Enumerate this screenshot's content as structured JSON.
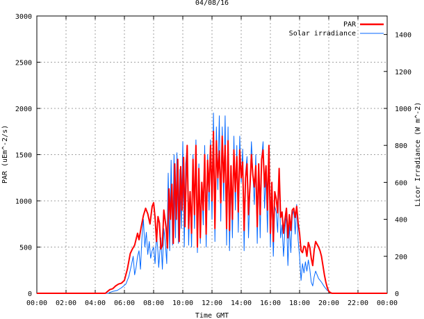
{
  "chart_data": {
    "type": "line",
    "title": "04/08/16",
    "xlabel": "Time GMT",
    "ylabel": "PAR (uEm^-2/s)",
    "y2label": "Licor Irradiance (W m^-2)",
    "x_ticks": [
      "00:00",
      "02:00",
      "04:00",
      "06:00",
      "08:00",
      "10:00",
      "12:00",
      "14:00",
      "16:00",
      "18:00",
      "20:00",
      "22:00",
      "00:00"
    ],
    "y_ticks": [
      "0",
      "500",
      "1000",
      "1500",
      "2000",
      "2500",
      "3000"
    ],
    "y2_ticks": [
      "0",
      "200",
      "400",
      "600",
      "800",
      "1000",
      "1200",
      "1400"
    ],
    "xlim": [
      0,
      24
    ],
    "ylim": [
      0,
      3000
    ],
    "y2lim": [
      0,
      1500
    ],
    "grid": true,
    "legend_position": "top-right",
    "series": [
      {
        "name": "PAR",
        "axis": "left",
        "color": "#ff0000",
        "points": [
          [
            0,
            0
          ],
          [
            4.7,
            0
          ],
          [
            4.85,
            20
          ],
          [
            5.0,
            40
          ],
          [
            5.2,
            50
          ],
          [
            5.4,
            80
          ],
          [
            5.6,
            100
          ],
          [
            5.8,
            110
          ],
          [
            6.0,
            140
          ],
          [
            6.2,
            260
          ],
          [
            6.4,
            430
          ],
          [
            6.55,
            480
          ],
          [
            6.7,
            520
          ],
          [
            6.9,
            650
          ],
          [
            7.0,
            580
          ],
          [
            7.15,
            720
          ],
          [
            7.3,
            840
          ],
          [
            7.45,
            920
          ],
          [
            7.6,
            860
          ],
          [
            7.75,
            750
          ],
          [
            7.9,
            940
          ],
          [
            8.0,
            980
          ],
          [
            8.1,
            820
          ],
          [
            8.2,
            560
          ],
          [
            8.3,
            830
          ],
          [
            8.4,
            760
          ],
          [
            8.5,
            480
          ],
          [
            8.6,
            520
          ],
          [
            8.7,
            900
          ],
          [
            8.85,
            720
          ],
          [
            8.95,
            490
          ],
          [
            9.05,
            1130
          ],
          [
            9.15,
            800
          ],
          [
            9.25,
            1180
          ],
          [
            9.35,
            540
          ],
          [
            9.45,
            1400
          ],
          [
            9.55,
            800
          ],
          [
            9.65,
            1450
          ],
          [
            9.75,
            560
          ],
          [
            9.85,
            1370
          ],
          [
            9.95,
            900
          ],
          [
            10.05,
            1470
          ],
          [
            10.15,
            720
          ],
          [
            10.25,
            1400
          ],
          [
            10.3,
            1600
          ],
          [
            10.4,
            700
          ],
          [
            10.5,
            1100
          ],
          [
            10.6,
            650
          ],
          [
            10.7,
            1450
          ],
          [
            10.8,
            850
          ],
          [
            10.9,
            1600
          ],
          [
            11.0,
            500
          ],
          [
            11.1,
            1350
          ],
          [
            11.2,
            600
          ],
          [
            11.3,
            1200
          ],
          [
            11.4,
            900
          ],
          [
            11.5,
            1500
          ],
          [
            11.6,
            640
          ],
          [
            11.7,
            1440
          ],
          [
            11.8,
            1100
          ],
          [
            11.9,
            1600
          ],
          [
            12.0,
            1000
          ],
          [
            12.1,
            1750
          ],
          [
            12.2,
            700
          ],
          [
            12.3,
            1650
          ],
          [
            12.4,
            1250
          ],
          [
            12.5,
            1540
          ],
          [
            12.6,
            980
          ],
          [
            12.7,
            1700
          ],
          [
            12.8,
            1200
          ],
          [
            12.9,
            1600
          ],
          [
            13.0,
            700
          ],
          [
            13.1,
            1650
          ],
          [
            13.2,
            680
          ],
          [
            13.3,
            1380
          ],
          [
            13.4,
            800
          ],
          [
            13.5,
            1550
          ],
          [
            13.6,
            1100
          ],
          [
            13.7,
            1480
          ],
          [
            13.8,
            880
          ],
          [
            13.9,
            1550
          ],
          [
            14.0,
            1250
          ],
          [
            14.1,
            1420
          ],
          [
            14.2,
            680
          ],
          [
            14.3,
            1250
          ],
          [
            14.4,
            1400
          ],
          [
            14.5,
            850
          ],
          [
            14.6,
            1150
          ],
          [
            14.7,
            1500
          ],
          [
            14.8,
            1280
          ],
          [
            14.9,
            1150
          ],
          [
            15.0,
            1380
          ],
          [
            15.1,
            720
          ],
          [
            15.2,
            1400
          ],
          [
            15.3,
            850
          ],
          [
            15.4,
            1450
          ],
          [
            15.5,
            1550
          ],
          [
            15.6,
            1150
          ],
          [
            15.7,
            1380
          ],
          [
            15.8,
            900
          ],
          [
            15.9,
            1600
          ],
          [
            16.0,
            650
          ],
          [
            16.1,
            1200
          ],
          [
            16.2,
            560
          ],
          [
            16.3,
            1100
          ],
          [
            16.4,
            1020
          ],
          [
            16.5,
            870
          ],
          [
            16.6,
            1350
          ],
          [
            16.7,
            820
          ],
          [
            16.8,
            880
          ],
          [
            16.9,
            650
          ],
          [
            17.0,
            800
          ],
          [
            17.1,
            920
          ],
          [
            17.2,
            600
          ],
          [
            17.3,
            850
          ],
          [
            17.4,
            680
          ],
          [
            17.5,
            900
          ],
          [
            17.6,
            920
          ],
          [
            17.7,
            820
          ],
          [
            17.8,
            940
          ],
          [
            17.9,
            760
          ],
          [
            18.0,
            650
          ],
          [
            18.1,
            460
          ],
          [
            18.2,
            440
          ],
          [
            18.3,
            510
          ],
          [
            18.4,
            500
          ],
          [
            18.5,
            400
          ],
          [
            18.6,
            550
          ],
          [
            18.7,
            500
          ],
          [
            18.8,
            380
          ],
          [
            18.9,
            300
          ],
          [
            19.0,
            470
          ],
          [
            19.1,
            560
          ],
          [
            19.2,
            530
          ],
          [
            19.3,
            500
          ],
          [
            19.4,
            460
          ],
          [
            19.5,
            400
          ],
          [
            19.6,
            300
          ],
          [
            19.7,
            200
          ],
          [
            19.8,
            120
          ],
          [
            19.9,
            60
          ],
          [
            20.0,
            20
          ],
          [
            20.1,
            10
          ],
          [
            20.2,
            0
          ],
          [
            24,
            0
          ]
        ]
      },
      {
        "name": "Solar irradiance",
        "axis": "right",
        "color": "#0066ff",
        "points": [
          [
            0,
            0
          ],
          [
            4.9,
            0
          ],
          [
            5.0,
            5
          ],
          [
            5.2,
            10
          ],
          [
            5.5,
            15
          ],
          [
            5.8,
            30
          ],
          [
            6.1,
            50
          ],
          [
            6.3,
            90
          ],
          [
            6.5,
            160
          ],
          [
            6.6,
            200
          ],
          [
            6.7,
            100
          ],
          [
            6.8,
            140
          ],
          [
            6.9,
            200
          ],
          [
            7.0,
            230
          ],
          [
            7.1,
            130
          ],
          [
            7.2,
            300
          ],
          [
            7.3,
            400
          ],
          [
            7.4,
            250
          ],
          [
            7.5,
            330
          ],
          [
            7.6,
            210
          ],
          [
            7.7,
            280
          ],
          [
            7.8,
            190
          ],
          [
            7.9,
            230
          ],
          [
            8.0,
            250
          ],
          [
            8.1,
            160
          ],
          [
            8.2,
            320
          ],
          [
            8.3,
            220
          ],
          [
            8.35,
            140
          ],
          [
            8.5,
            300
          ],
          [
            8.6,
            130
          ],
          [
            8.7,
            350
          ],
          [
            8.8,
            280
          ],
          [
            8.9,
            160
          ],
          [
            9.0,
            650
          ],
          [
            9.1,
            230
          ],
          [
            9.2,
            720
          ],
          [
            9.3,
            260
          ],
          [
            9.4,
            750
          ],
          [
            9.5,
            300
          ],
          [
            9.6,
            760
          ],
          [
            9.7,
            270
          ],
          [
            9.8,
            670
          ],
          [
            9.9,
            350
          ],
          [
            10.0,
            820
          ],
          [
            10.1,
            250
          ],
          [
            10.2,
            700
          ],
          [
            10.3,
            800
          ],
          [
            10.4,
            260
          ],
          [
            10.5,
            550
          ],
          [
            10.6,
            250
          ],
          [
            10.7,
            750
          ],
          [
            10.8,
            350
          ],
          [
            10.9,
            830
          ],
          [
            11.0,
            220
          ],
          [
            11.1,
            700
          ],
          [
            11.2,
            270
          ],
          [
            11.3,
            600
          ],
          [
            11.4,
            370
          ],
          [
            11.5,
            800
          ],
          [
            11.6,
            250
          ],
          [
            11.7,
            750
          ],
          [
            11.8,
            450
          ],
          [
            11.9,
            830
          ],
          [
            12.0,
            400
          ],
          [
            12.1,
            975
          ],
          [
            12.2,
            280
          ],
          [
            12.3,
            900
          ],
          [
            12.4,
            560
          ],
          [
            12.5,
            960
          ],
          [
            12.6,
            390
          ],
          [
            12.7,
            900
          ],
          [
            12.8,
            500
          ],
          [
            12.9,
            960
          ],
          [
            13.0,
            260
          ],
          [
            13.1,
            900
          ],
          [
            13.2,
            230
          ],
          [
            13.3,
            620
          ],
          [
            13.4,
            300
          ],
          [
            13.5,
            850
          ],
          [
            13.6,
            450
          ],
          [
            13.7,
            800
          ],
          [
            13.8,
            330
          ],
          [
            13.9,
            850
          ],
          [
            14.0,
            600
          ],
          [
            14.1,
            780
          ],
          [
            14.2,
            230
          ],
          [
            14.3,
            650
          ],
          [
            14.4,
            740
          ],
          [
            14.5,
            300
          ],
          [
            14.6,
            550
          ],
          [
            14.7,
            820
          ],
          [
            14.8,
            650
          ],
          [
            14.9,
            480
          ],
          [
            15.0,
            750
          ],
          [
            15.1,
            270
          ],
          [
            15.2,
            700
          ],
          [
            15.3,
            300
          ],
          [
            15.4,
            730
          ],
          [
            15.5,
            820
          ],
          [
            15.6,
            460
          ],
          [
            15.7,
            640
          ],
          [
            15.8,
            330
          ],
          [
            15.9,
            800
          ],
          [
            16.0,
            250
          ],
          [
            16.1,
            550
          ],
          [
            16.2,
            200
          ],
          [
            16.3,
            470
          ],
          [
            16.4,
            440
          ],
          [
            16.5,
            330
          ],
          [
            16.6,
            650
          ],
          [
            16.7,
            300
          ],
          [
            16.8,
            370
          ],
          [
            16.9,
            200
          ],
          [
            17.0,
            350
          ],
          [
            17.1,
            420
          ],
          [
            17.2,
            150
          ],
          [
            17.3,
            370
          ],
          [
            17.4,
            220
          ],
          [
            17.5,
            420
          ],
          [
            17.6,
            450
          ],
          [
            17.7,
            320
          ],
          [
            17.8,
            480
          ],
          [
            17.9,
            290
          ],
          [
            18.0,
            200
          ],
          [
            18.1,
            70
          ],
          [
            18.2,
            160
          ],
          [
            18.3,
            110
          ],
          [
            18.4,
            170
          ],
          [
            18.5,
            120
          ],
          [
            18.6,
            180
          ],
          [
            18.7,
            130
          ],
          [
            18.8,
            60
          ],
          [
            18.9,
            40
          ],
          [
            19.0,
            90
          ],
          [
            19.1,
            120
          ],
          [
            19.2,
            100
          ],
          [
            19.3,
            80
          ],
          [
            19.5,
            60
          ],
          [
            19.7,
            35
          ],
          [
            19.9,
            15
          ],
          [
            20.1,
            5
          ],
          [
            20.3,
            0
          ],
          [
            24,
            0
          ]
        ]
      }
    ]
  }
}
